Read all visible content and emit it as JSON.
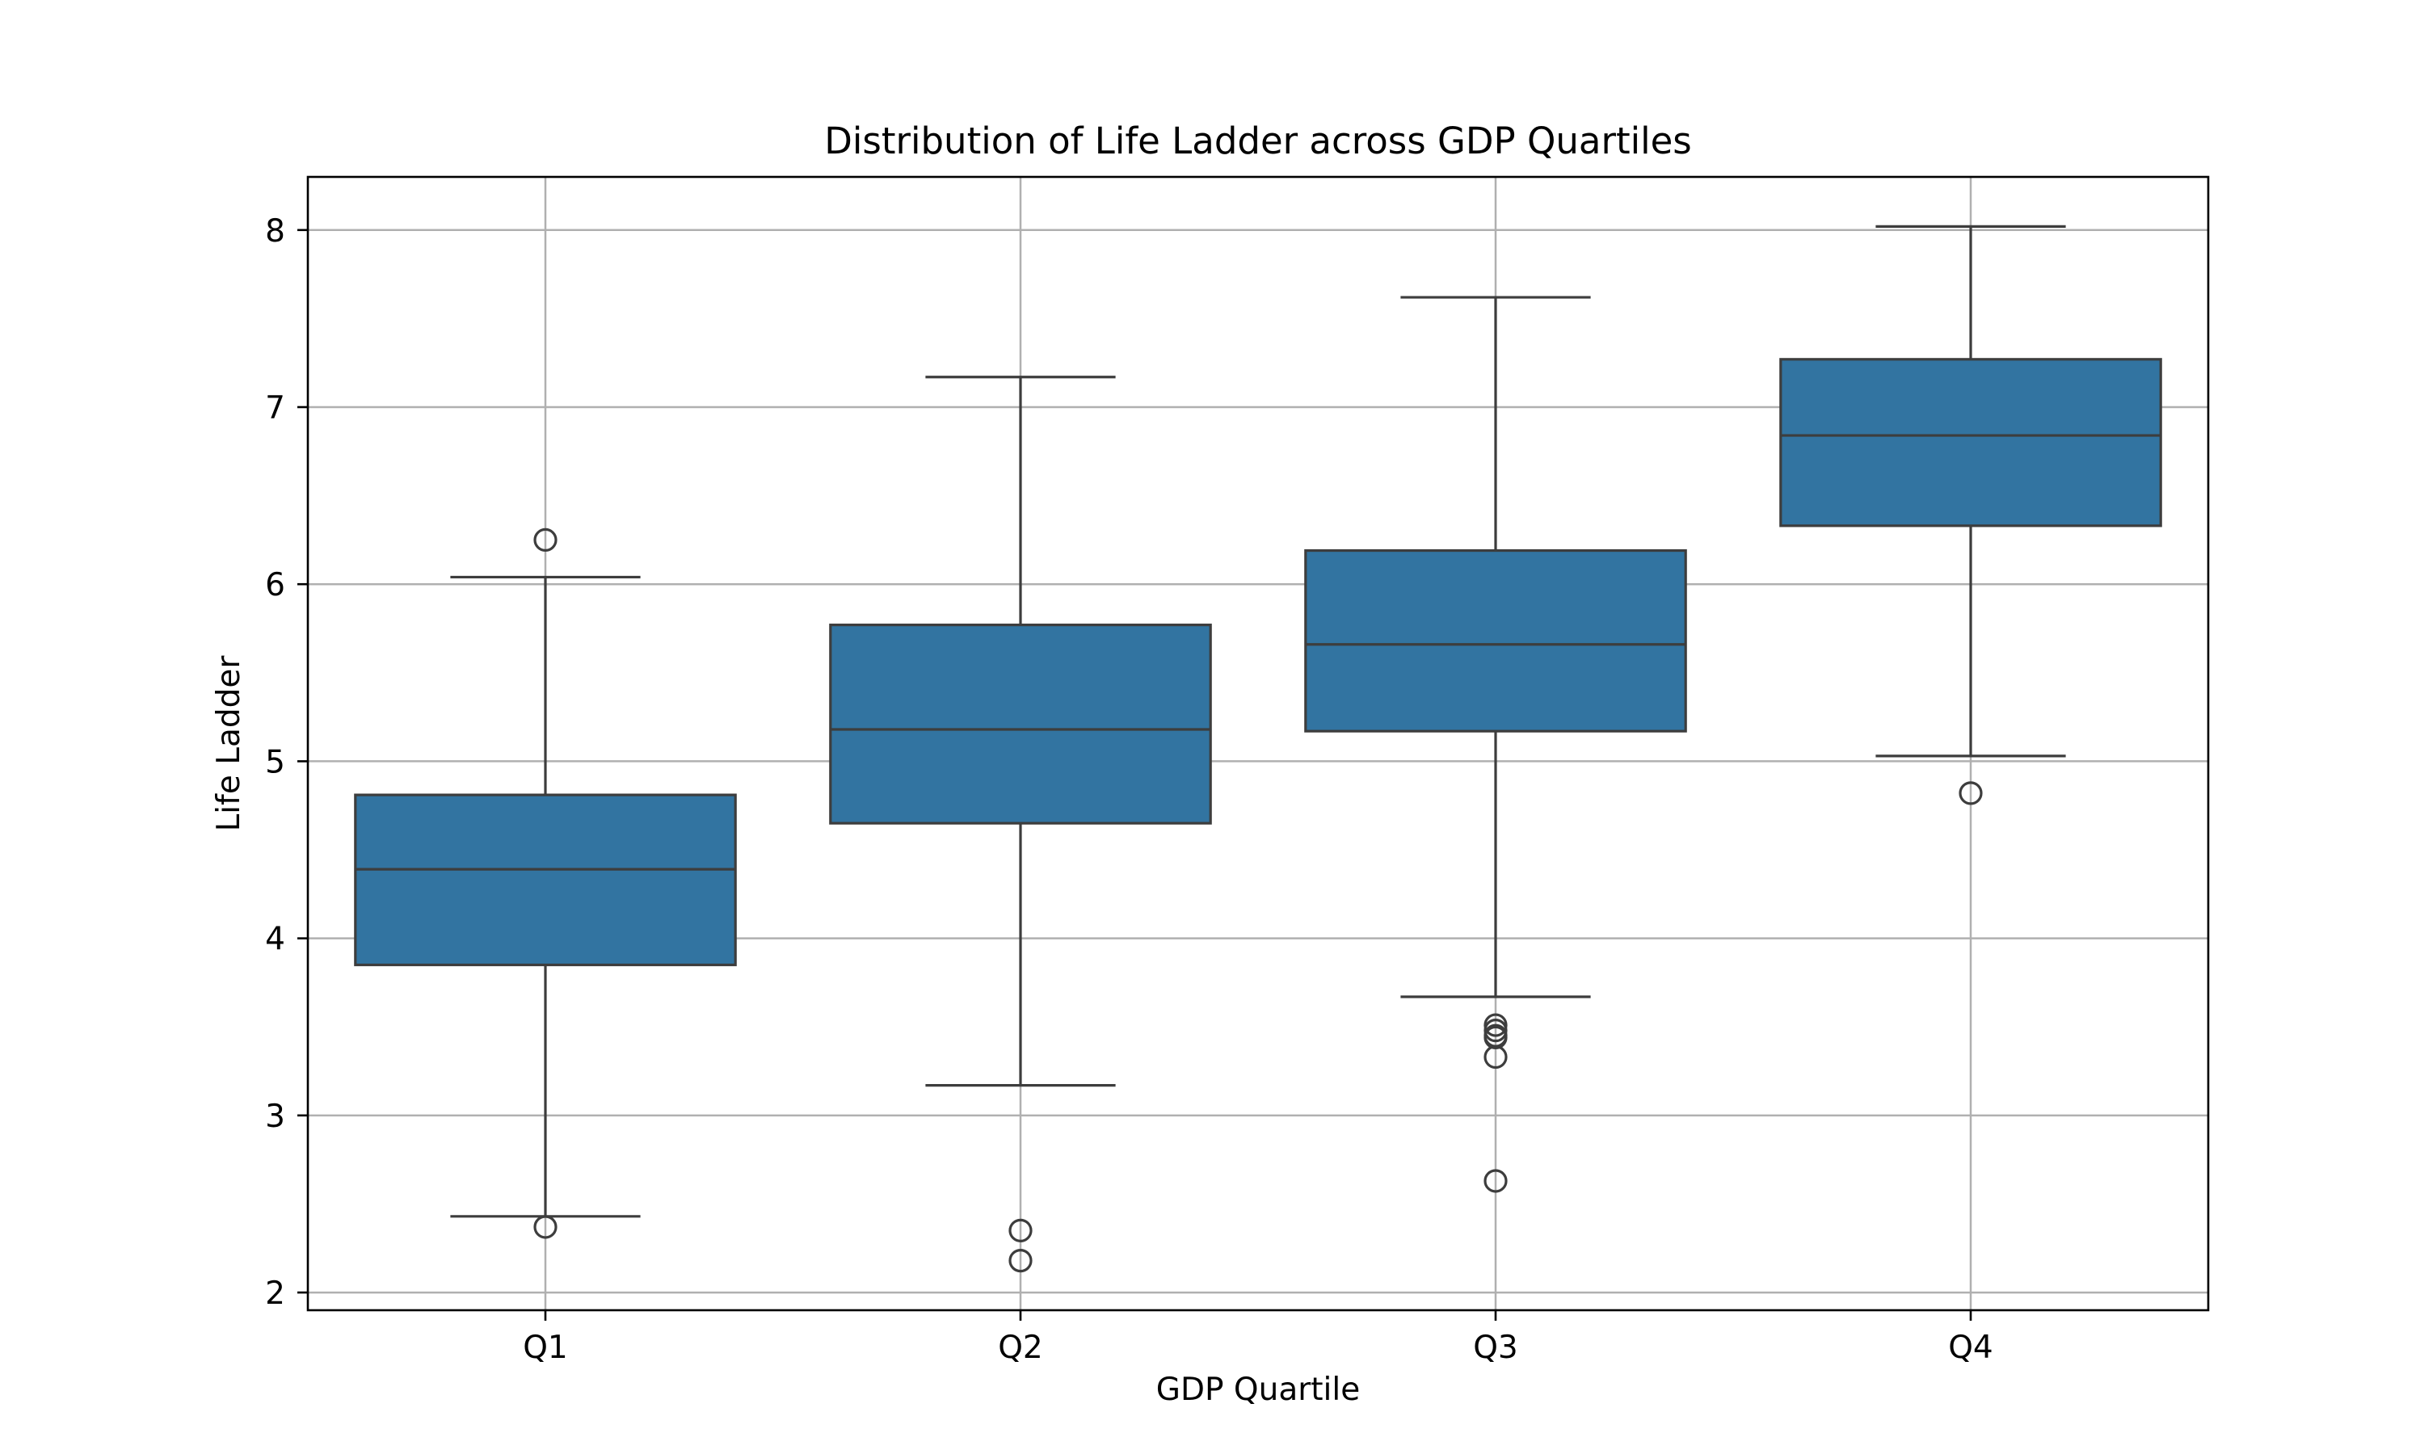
{
  "chart_data": {
    "type": "box",
    "title": "Distribution of Life Ladder across GDP Quartiles",
    "xlabel": "GDP Quartile",
    "ylabel": "Life Ladder",
    "categories": [
      "Q1",
      "Q2",
      "Q3",
      "Q4"
    ],
    "ylim": [
      1.9,
      8.3
    ],
    "yticks": [
      2,
      3,
      4,
      5,
      6,
      7,
      8
    ],
    "grid": true,
    "box_color": "#3274a1",
    "line_color": "#3d3d3d",
    "grid_color": "#b0b0b0",
    "boxes": [
      {
        "category": "Q1",
        "whisker_low": 2.43,
        "q1": 3.85,
        "median": 4.39,
        "q3": 4.81,
        "whisker_high": 6.04,
        "outliers": [
          6.25,
          2.37
        ]
      },
      {
        "category": "Q2",
        "whisker_low": 3.17,
        "q1": 4.65,
        "median": 5.18,
        "q3": 5.77,
        "whisker_high": 7.17,
        "outliers": [
          2.35,
          2.18
        ]
      },
      {
        "category": "Q3",
        "whisker_low": 3.67,
        "q1": 5.17,
        "median": 5.66,
        "q3": 6.19,
        "whisker_high": 7.62,
        "outliers": [
          3.51,
          3.48,
          3.45,
          3.44,
          3.33,
          2.63
        ]
      },
      {
        "category": "Q4",
        "whisker_low": 5.03,
        "q1": 6.33,
        "median": 6.84,
        "q3": 7.27,
        "whisker_high": 8.02,
        "outliers": [
          4.82
        ]
      }
    ]
  }
}
